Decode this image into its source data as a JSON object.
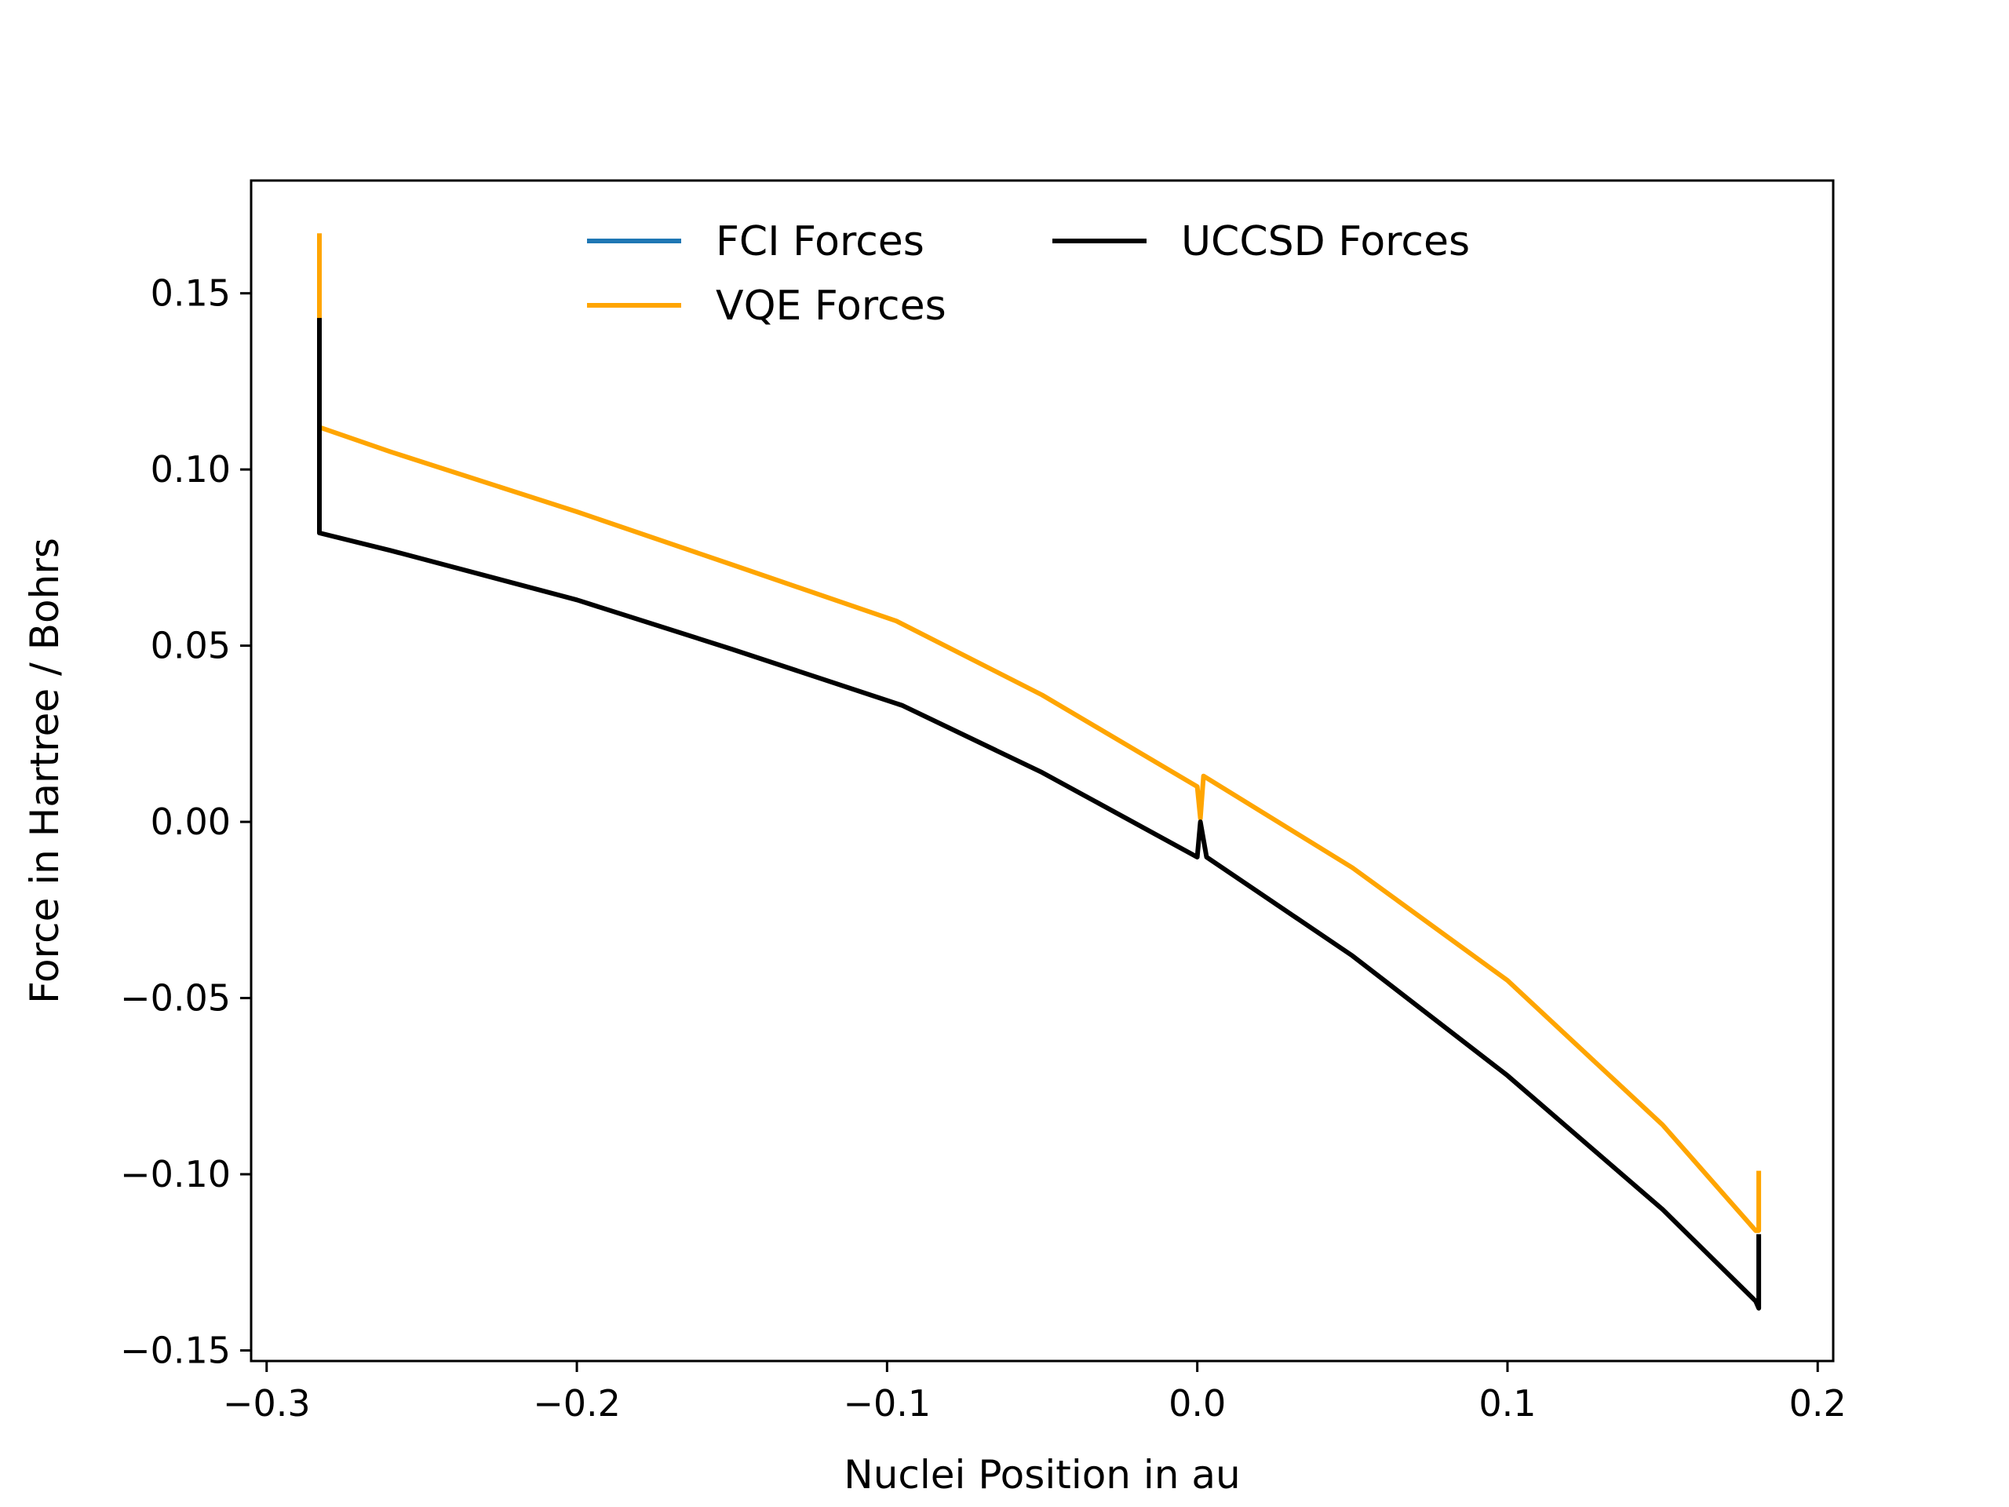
{
  "chart_data": {
    "type": "line",
    "title": "",
    "xlabel": "Nuclei Position in au",
    "ylabel": "Force in Hartree / Bohrs",
    "xlim": [
      -0.305,
      0.205
    ],
    "ylim": [
      -0.153,
      0.182
    ],
    "xticks": [
      -0.3,
      -0.2,
      -0.1,
      0.0,
      0.1,
      0.2
    ],
    "xtick_labels": [
      "−0.3",
      "−0.2",
      "−0.1",
      "0.0",
      "0.1",
      "0.2"
    ],
    "yticks": [
      -0.15,
      -0.1,
      -0.05,
      0.0,
      0.05,
      0.1,
      0.15
    ],
    "ytick_labels": [
      "−0.15",
      "−0.10",
      "−0.05",
      "0.00",
      "0.05",
      "0.10",
      "0.15"
    ],
    "grid": false,
    "legend": {
      "placement": "upper-center",
      "entries": [
        "FCI Forces",
        "VQE Forces",
        "UCCSD Forces"
      ]
    },
    "series": [
      {
        "name": "FCI Forces",
        "color": "#1f77b4",
        "x": [],
        "y": []
      },
      {
        "name": "VQE Forces",
        "color": "#ffa500",
        "x": [
          -0.283,
          -0.283,
          -0.283,
          -0.26,
          -0.2,
          -0.15,
          -0.097,
          -0.05,
          0.0,
          0.001,
          0.002,
          0.05,
          0.1,
          0.15,
          0.18,
          0.181,
          0.181
        ],
        "y": [
          0.167,
          0.145,
          0.112,
          0.105,
          0.088,
          0.073,
          0.057,
          0.036,
          0.01,
          0.001,
          0.013,
          -0.013,
          -0.045,
          -0.086,
          -0.116,
          -0.116,
          -0.099
        ]
      },
      {
        "name": "UCCSD Forces",
        "color": "#000000",
        "x": [
          -0.283,
          -0.283,
          -0.26,
          -0.2,
          -0.15,
          -0.095,
          -0.05,
          0.0,
          0.001,
          0.003,
          0.05,
          0.1,
          0.15,
          0.18,
          0.181,
          0.181
        ],
        "y": [
          0.143,
          0.082,
          0.077,
          0.063,
          0.049,
          0.033,
          0.014,
          -0.01,
          0.0,
          -0.01,
          -0.038,
          -0.072,
          -0.11,
          -0.136,
          -0.138,
          -0.117
        ]
      }
    ]
  }
}
